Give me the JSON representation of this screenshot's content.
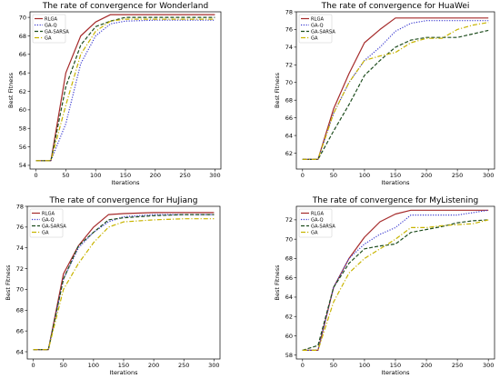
{
  "chart_data": [
    {
      "type": "line",
      "title": "The rate of convergence for Wonderland",
      "xlabel": "Iterations",
      "ylabel": "Best Fitness",
      "xlim": [
        -10,
        310
      ],
      "ylim": [
        53.6,
        70.6
      ],
      "xticks": [
        0,
        50,
        100,
        150,
        200,
        250,
        300
      ],
      "yticks": [
        54,
        56,
        58,
        60,
        62,
        64,
        66,
        68,
        70
      ],
      "legend": "top-left",
      "series": [
        {
          "name": "RLGA",
          "color": "#a52a2a",
          "dash": "solid",
          "x": [
            0,
            25,
            50,
            75,
            100,
            125,
            150,
            200,
            250,
            300
          ],
          "y": [
            54.5,
            54.5,
            64.0,
            68.0,
            69.5,
            70.3,
            70.3,
            70.3,
            70.3,
            70.3
          ]
        },
        {
          "name": "GA-Q",
          "color": "#3a3ad0",
          "dash": "dot",
          "x": [
            0,
            25,
            50,
            75,
            100,
            125,
            150,
            200,
            250,
            300
          ],
          "y": [
            54.5,
            54.5,
            58.5,
            65.0,
            68.0,
            69.3,
            69.6,
            69.7,
            69.7,
            69.7
          ]
        },
        {
          "name": "GA-SARSA",
          "color": "#1e4d1e",
          "dash": "dash",
          "x": [
            0,
            25,
            50,
            75,
            100,
            125,
            150,
            200,
            250,
            300
          ],
          "y": [
            54.5,
            54.5,
            62.5,
            67.0,
            69.0,
            69.6,
            70.0,
            70.0,
            70.0,
            70.0
          ]
        },
        {
          "name": "GA",
          "color": "#c8b400",
          "dash": "dashdot",
          "x": [
            0,
            25,
            50,
            75,
            100,
            125,
            150,
            200,
            250,
            300
          ],
          "y": [
            54.5,
            54.5,
            60.5,
            66.0,
            68.5,
            69.6,
            69.8,
            69.8,
            69.8,
            69.8
          ]
        }
      ]
    },
    {
      "type": "line",
      "title": "The rate of convergence for HuaWei",
      "xlabel": "Iterations",
      "ylabel": "Best Fitness",
      "xlim": [
        -10,
        310
      ],
      "ylim": [
        60.2,
        78.0
      ],
      "xticks": [
        0,
        50,
        100,
        150,
        200,
        250,
        300
      ],
      "yticks": [
        62,
        64,
        66,
        68,
        70,
        72,
        74,
        76,
        78
      ],
      "legend": "top-left",
      "series": [
        {
          "name": "RLGA",
          "color": "#a52a2a",
          "dash": "solid",
          "x": [
            0,
            25,
            50,
            75,
            100,
            125,
            150,
            200,
            250,
            300
          ],
          "y": [
            61.3,
            61.3,
            67.0,
            71.0,
            74.5,
            76.0,
            77.3,
            77.3,
            77.3,
            77.3
          ]
        },
        {
          "name": "GA-Q",
          "color": "#3a3ad0",
          "dash": "dot",
          "x": [
            0,
            25,
            50,
            75,
            100,
            125,
            150,
            175,
            200,
            250,
            300
          ],
          "y": [
            61.3,
            61.3,
            66.5,
            70.0,
            72.5,
            74.0,
            75.8,
            76.7,
            77.0,
            77.0,
            77.0
          ]
        },
        {
          "name": "GA-SARSA",
          "color": "#1e4d1e",
          "dash": "dash",
          "x": [
            0,
            25,
            50,
            75,
            100,
            125,
            150,
            175,
            200,
            225,
            250,
            275,
            300
          ],
          "y": [
            61.3,
            61.3,
            64.5,
            67.5,
            70.8,
            72.5,
            74.0,
            74.8,
            75.1,
            75.1,
            75.1,
            75.5,
            75.9
          ]
        },
        {
          "name": "GA",
          "color": "#c8b400",
          "dash": "dashdot",
          "x": [
            0,
            25,
            50,
            75,
            100,
            125,
            150,
            175,
            200,
            225,
            250,
            275,
            300
          ],
          "y": [
            61.3,
            61.3,
            66.5,
            70.0,
            72.5,
            73.0,
            73.4,
            74.5,
            75.0,
            75.0,
            76.0,
            76.5,
            76.8
          ]
        }
      ]
    },
    {
      "type": "line",
      "title": "The rate of convergence for HuJiang",
      "xlabel": "Iterations",
      "ylabel": "Best Fitness",
      "xlim": [
        -10,
        310
      ],
      "ylim": [
        63.3,
        78.0
      ],
      "xticks": [
        0,
        50,
        100,
        150,
        200,
        250,
        300
      ],
      "yticks": [
        64,
        66,
        68,
        70,
        72,
        74,
        76,
        78
      ],
      "legend": "top-left",
      "series": [
        {
          "name": "RLGA",
          "color": "#a52a2a",
          "dash": "solid",
          "x": [
            0,
            25,
            50,
            75,
            100,
            125,
            150,
            200,
            250,
            300
          ],
          "y": [
            64.2,
            64.2,
            71.5,
            74.2,
            76.0,
            77.2,
            77.3,
            77.4,
            77.4,
            77.4
          ]
        },
        {
          "name": "GA-Q",
          "color": "#3a3ad0",
          "dash": "dot",
          "x": [
            0,
            25,
            50,
            75,
            100,
            125,
            150,
            200,
            250,
            300
          ],
          "y": [
            64.2,
            64.2,
            71.0,
            74.0,
            75.5,
            76.5,
            77.0,
            77.2,
            77.2,
            77.2
          ]
        },
        {
          "name": "GA-SARSA",
          "color": "#1e4d1e",
          "dash": "dash",
          "x": [
            0,
            25,
            50,
            75,
            100,
            125,
            150,
            200,
            250,
            300
          ],
          "y": [
            64.2,
            64.2,
            71.0,
            74.2,
            75.5,
            76.7,
            76.9,
            77.1,
            77.2,
            77.2
          ]
        },
        {
          "name": "GA",
          "color": "#c8b400",
          "dash": "dashdot",
          "x": [
            0,
            25,
            50,
            75,
            100,
            125,
            150,
            200,
            250,
            300
          ],
          "y": [
            64.2,
            64.2,
            70.0,
            72.5,
            74.5,
            76.0,
            76.5,
            76.7,
            76.8,
            76.8
          ]
        }
      ]
    },
    {
      "type": "line",
      "title": "The rate of convergence for MyListening",
      "xlabel": "Iterations",
      "ylabel": "Best Fitness",
      "xlim": [
        -10,
        310
      ],
      "ylim": [
        57.6,
        73.4
      ],
      "xticks": [
        0,
        50,
        100,
        150,
        200,
        250,
        300
      ],
      "yticks": [
        58,
        60,
        62,
        64,
        66,
        68,
        70,
        72
      ],
      "legend": "top-left",
      "series": [
        {
          "name": "RLGA",
          "color": "#a52a2a",
          "dash": "solid",
          "x": [
            0,
            25,
            50,
            75,
            100,
            125,
            150,
            175,
            200,
            250,
            300
          ],
          "y": [
            58.5,
            58.5,
            65.0,
            68.0,
            70.2,
            71.8,
            72.6,
            73.0,
            73.0,
            73.0,
            73.0
          ]
        },
        {
          "name": "GA-Q",
          "color": "#3a3ad0",
          "dash": "dot",
          "x": [
            0,
            25,
            50,
            75,
            100,
            125,
            150,
            175,
            200,
            250,
            300
          ],
          "y": [
            58.5,
            58.5,
            65.0,
            68.0,
            69.5,
            70.5,
            71.2,
            72.5,
            72.5,
            72.5,
            73.0
          ]
        },
        {
          "name": "GA-SARSA",
          "color": "#1e4d1e",
          "dash": "dash",
          "x": [
            0,
            25,
            50,
            75,
            100,
            125,
            150,
            175,
            200,
            225,
            250,
            275,
            300
          ],
          "y": [
            58.5,
            59.0,
            65.0,
            67.5,
            69.0,
            69.3,
            69.5,
            70.7,
            71.0,
            71.3,
            71.7,
            71.9,
            72.0
          ]
        },
        {
          "name": "GA",
          "color": "#c8b400",
          "dash": "dashdot",
          "x": [
            0,
            25,
            50,
            75,
            100,
            125,
            150,
            175,
            200,
            225,
            250,
            275,
            300
          ],
          "y": [
            58.5,
            58.5,
            63.5,
            66.5,
            68.0,
            69.0,
            70.0,
            71.2,
            71.2,
            71.4,
            71.5,
            71.6,
            72.0
          ]
        }
      ]
    }
  ]
}
